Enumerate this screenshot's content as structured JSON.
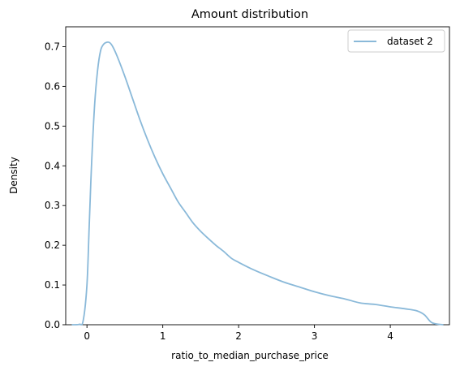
{
  "chart_data": {
    "type": "line",
    "title": "Amount distribution",
    "xlabel": "ratio_to_median_purchase_price",
    "ylabel": "Density",
    "xlim": [
      -0.28,
      4.78
    ],
    "ylim": [
      0,
      0.75
    ],
    "x_ticks": [
      0,
      1,
      2,
      3,
      4
    ],
    "y_ticks": [
      0.0,
      0.1,
      0.2,
      0.3,
      0.4,
      0.5,
      0.6,
      0.7
    ],
    "x_tick_labels": [
      "0",
      "1",
      "2",
      "3",
      "4"
    ],
    "y_tick_labels": [
      "0.0",
      "0.1",
      "0.2",
      "0.3",
      "0.4",
      "0.5",
      "0.6",
      "0.7"
    ],
    "grid": false,
    "legend_position": "top-right",
    "series": [
      {
        "name": "dataset 2",
        "color": "#8ab9d9",
        "x": [
          -0.2,
          -0.1,
          -0.05,
          0.0,
          0.03,
          0.06,
          0.1,
          0.14,
          0.18,
          0.22,
          0.26,
          0.3,
          0.34,
          0.4,
          0.5,
          0.6,
          0.7,
          0.8,
          0.9,
          1.0,
          1.1,
          1.2,
          1.3,
          1.4,
          1.5,
          1.6,
          1.7,
          1.8,
          1.9,
          2.0,
          2.2,
          2.4,
          2.6,
          2.8,
          3.0,
          3.2,
          3.4,
          3.6,
          3.8,
          4.0,
          4.2,
          4.35,
          4.45,
          4.55,
          4.7
        ],
        "y": [
          0.0,
          0.001,
          0.01,
          0.1,
          0.25,
          0.4,
          0.55,
          0.64,
          0.69,
          0.706,
          0.711,
          0.71,
          0.7,
          0.675,
          0.625,
          0.57,
          0.515,
          0.465,
          0.42,
          0.38,
          0.345,
          0.31,
          0.283,
          0.256,
          0.235,
          0.217,
          0.2,
          0.185,
          0.168,
          0.157,
          0.138,
          0.122,
          0.107,
          0.095,
          0.083,
          0.073,
          0.065,
          0.055,
          0.051,
          0.045,
          0.04,
          0.035,
          0.025,
          0.005,
          0.0
        ]
      }
    ]
  }
}
